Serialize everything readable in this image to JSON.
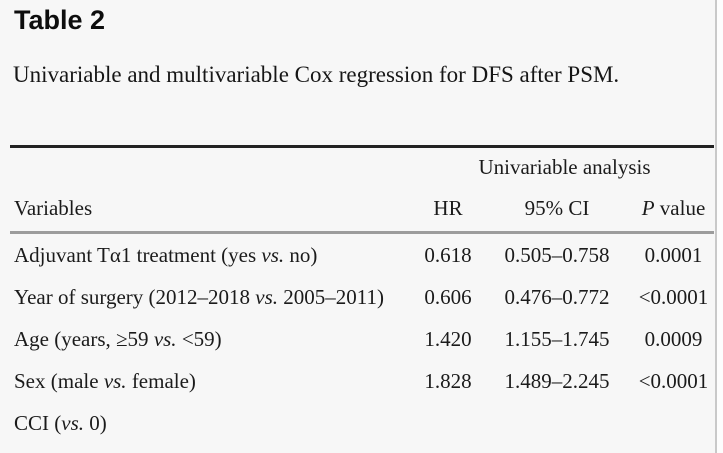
{
  "page": {
    "title": "Table 2",
    "caption": "Univariable and multivariable Cox regression for DFS after PSM."
  },
  "table": {
    "span_header": "Univariable analysis",
    "columns": {
      "variables": "Variables",
      "hr": "HR",
      "ci": "95% CI",
      "p_italic": "P",
      "p_rest": " value"
    },
    "rows": [
      {
        "variable": "Adjuvant Tα1 treatment (yes vs. no)",
        "hr": "0.618",
        "ci": "0.505–0.758",
        "p": "0.0001"
      },
      {
        "variable": "Year of surgery (2012–2018 vs. 2005–2011)",
        "hr": "0.606",
        "ci": "0.476–0.772",
        "p": "<0.0001"
      },
      {
        "variable": "Age (years, ≥59 vs. <59)",
        "hr": "1.420",
        "ci": "1.155–1.745",
        "p": "0.0009"
      },
      {
        "variable": "Sex (male vs. female)",
        "hr": "1.828",
        "ci": "1.489–2.245",
        "p": "<0.0001"
      },
      {
        "variable": "CCI (vs. 0)",
        "hr": "",
        "ci": "",
        "p": ""
      }
    ]
  },
  "colors": {
    "page_background": "#f7f7f7",
    "text": "#1b1b1b",
    "rule_top": "#222222",
    "rule_mid": "#9c9c9c",
    "right_edge_divider": "#c9c9c9"
  }
}
